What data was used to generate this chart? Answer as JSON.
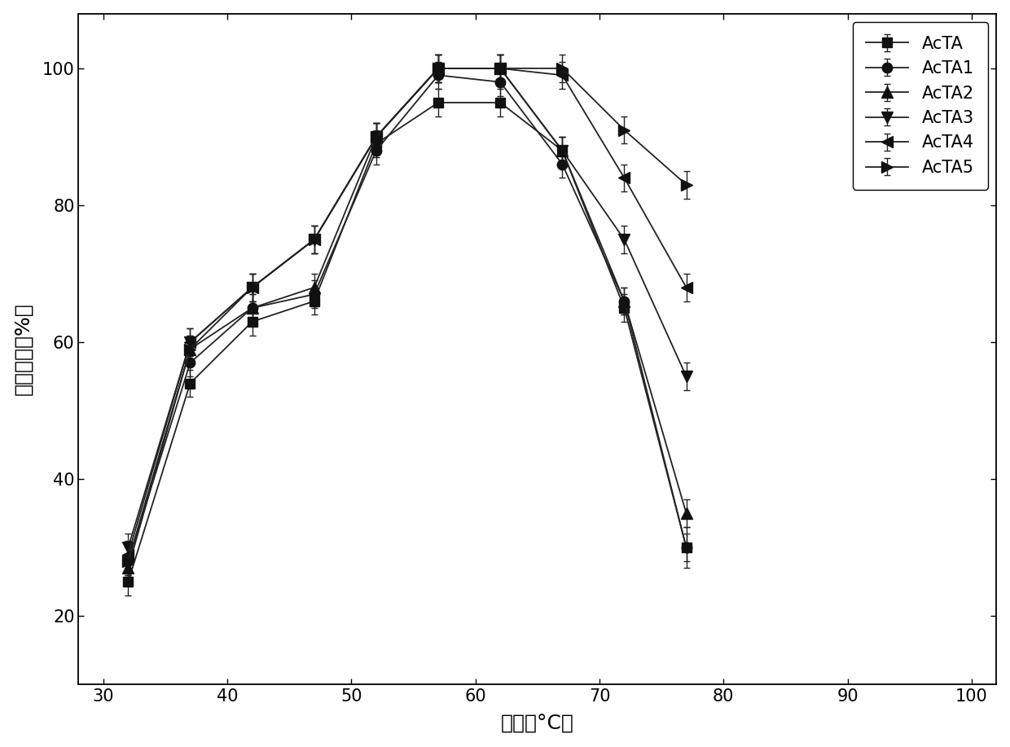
{
  "x": [
    32,
    37,
    42,
    47,
    52,
    57,
    62,
    67,
    72,
    77
  ],
  "series": {
    "AcTA": {
      "y": [
        25,
        54,
        63,
        66,
        89,
        95,
        95,
        88,
        65,
        30
      ],
      "yerr": [
        2,
        2,
        2,
        2,
        2,
        2,
        2,
        2,
        2,
        3
      ],
      "marker": "s"
    },
    "AcTA1": {
      "y": [
        28,
        57,
        65,
        67,
        88,
        99,
        98,
        86,
        66,
        30
      ],
      "yerr": [
        2,
        2,
        2,
        2,
        2,
        2,
        2,
        2,
        2,
        2
      ],
      "marker": "o"
    },
    "AcTA2": {
      "y": [
        27,
        59,
        65,
        68,
        90,
        100,
        100,
        88,
        66,
        35
      ],
      "yerr": [
        2,
        2,
        2,
        2,
        2,
        2,
        2,
        2,
        2,
        2
      ],
      "marker": "^"
    },
    "AcTA3": {
      "y": [
        30,
        60,
        68,
        75,
        90,
        100,
        100,
        88,
        75,
        55
      ],
      "yerr": [
        2,
        2,
        2,
        2,
        2,
        2,
        2,
        2,
        2,
        2
      ],
      "marker": "v"
    },
    "AcTA4": {
      "y": [
        29,
        60,
        68,
        75,
        90,
        100,
        100,
        99,
        84,
        68
      ],
      "yerr": [
        2,
        2,
        2,
        2,
        2,
        2,
        2,
        2,
        2,
        2
      ],
      "marker": "<"
    },
    "AcTA5": {
      "y": [
        28,
        59,
        68,
        75,
        90,
        100,
        100,
        100,
        91,
        83
      ],
      "yerr": [
        2,
        2,
        2,
        2,
        2,
        2,
        2,
        2,
        2,
        2
      ],
      "marker": ">"
    }
  },
  "xlabel": "温度（°C）",
  "ylabel": "相对酶活（%）",
  "xlim": [
    28,
    102
  ],
  "ylim": [
    10,
    108
  ],
  "xticks": [
    30,
    40,
    50,
    60,
    70,
    80,
    90,
    100
  ],
  "yticks": [
    20,
    40,
    60,
    80,
    100
  ],
  "line_color": "#222222",
  "marker_color": "#111111",
  "background_color": "#ffffff",
  "legend_fontsize": 15,
  "axis_fontsize": 18,
  "tick_fontsize": 15
}
